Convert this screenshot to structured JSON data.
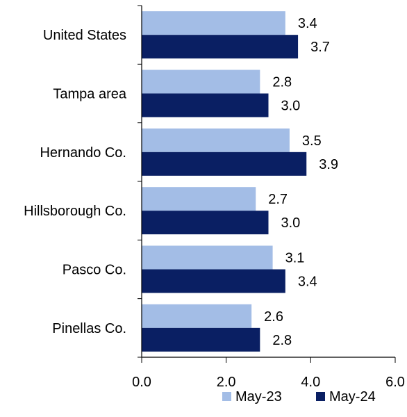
{
  "chart_data": {
    "type": "bar",
    "orientation": "horizontal",
    "categories": [
      "United States",
      "Tampa area",
      "Hernando Co.",
      "Hillsborough Co.",
      "Pasco Co.",
      "Pinellas Co."
    ],
    "series": [
      {
        "name": "May-23",
        "values": [
          3.4,
          2.8,
          3.5,
          2.7,
          3.1,
          2.6
        ],
        "color": "#a3bde6"
      },
      {
        "name": "May-24",
        "values": [
          3.7,
          3.0,
          3.9,
          3.0,
          3.4,
          2.8
        ],
        "color": "#0a1f63"
      }
    ],
    "value_labels": [
      [
        "3.4",
        "2.8",
        "3.5",
        "2.7",
        "3.1",
        "2.6"
      ],
      [
        "3.7",
        "3.0",
        "3.9",
        "3.0",
        "3.4",
        "2.8"
      ]
    ],
    "xlim": [
      0,
      6
    ],
    "xticks": [
      0,
      2,
      4,
      6
    ],
    "xtick_labels": [
      "0.0",
      "2.0",
      "4.0",
      "6.0"
    ],
    "title": "",
    "xlabel": "",
    "ylabel": "",
    "grid": false,
    "legend_position": "bottom-right"
  }
}
